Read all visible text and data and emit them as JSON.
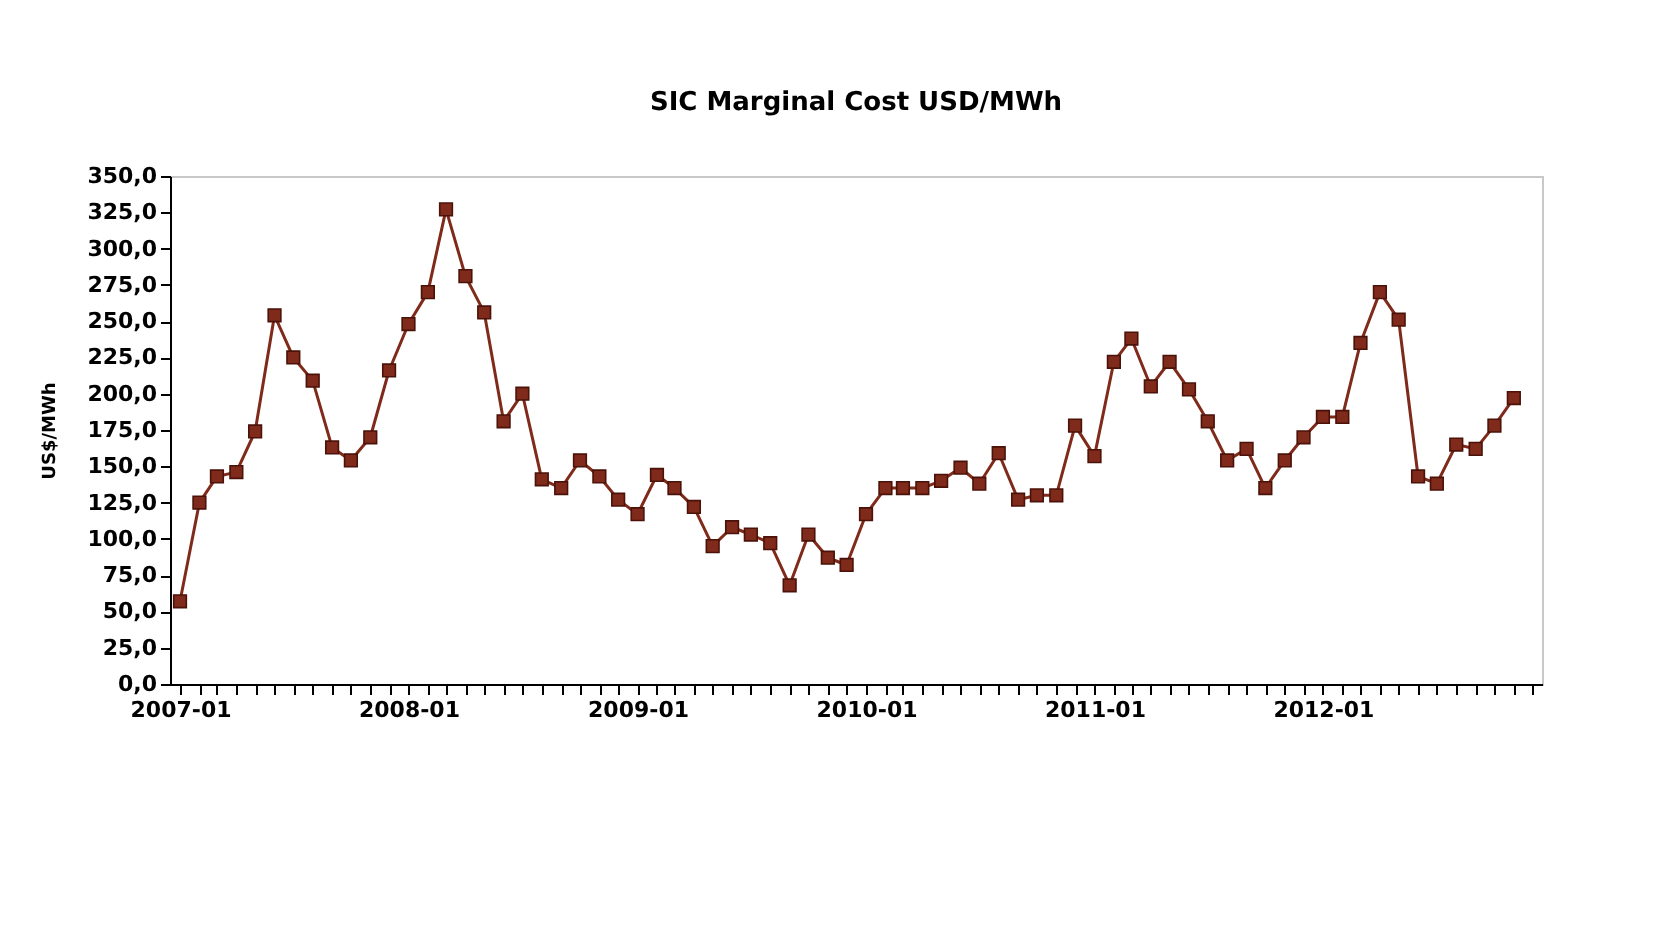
{
  "chart_data": {
    "type": "line",
    "title": "SIC Marginal Cost USD/MWh",
    "ylabel": "US$/MWh",
    "x": [
      "2007-01",
      "2007-02",
      "2007-03",
      "2007-04",
      "2007-05",
      "2007-06",
      "2007-07",
      "2007-08",
      "2007-09",
      "2007-10",
      "2007-11",
      "2007-12",
      "2008-01",
      "2008-02",
      "2008-03",
      "2008-04",
      "2008-05",
      "2008-06",
      "2008-07",
      "2008-08",
      "2008-09",
      "2008-10",
      "2008-11",
      "2008-12",
      "2009-01",
      "2009-02",
      "2009-03",
      "2009-04",
      "2009-05",
      "2009-06",
      "2009-07",
      "2009-08",
      "2009-09",
      "2009-10",
      "2009-11",
      "2009-12",
      "2010-01",
      "2010-02",
      "2010-03",
      "2010-04",
      "2010-05",
      "2010-06",
      "2010-07",
      "2010-08",
      "2010-09",
      "2010-10",
      "2010-11",
      "2010-12",
      "2011-01",
      "2011-02",
      "2011-03",
      "2011-04",
      "2011-05",
      "2011-06",
      "2011-07",
      "2011-08",
      "2011-09",
      "2011-10",
      "2011-11",
      "2011-12",
      "2012-01",
      "2012-02",
      "2012-03",
      "2012-04",
      "2012-05",
      "2012-06",
      "2012-07",
      "2012-08",
      "2012-09",
      "2012-10",
      "2012-11"
    ],
    "series": [
      {
        "color": "#7f2a1a",
        "values": [
          57,
          125,
          143,
          146,
          174,
          254,
          225,
          209,
          163,
          154,
          170,
          216,
          248,
          270,
          327,
          281,
          256,
          181,
          200,
          141,
          135,
          154,
          143,
          127,
          117,
          144,
          135,
          122,
          95,
          108,
          103,
          97,
          68,
          103,
          87,
          82,
          117,
          135,
          135,
          135,
          140,
          149,
          138,
          159,
          127,
          130,
          130,
          178,
          157,
          222,
          238,
          205,
          222,
          203,
          181,
          154,
          162,
          135,
          154,
          170,
          184,
          184,
          235,
          270,
          251,
          143,
          138,
          165,
          162,
          178,
          197
        ]
      }
    ],
    "xlim": [
      "2006-12-16",
      "2012-12-16"
    ],
    "xticks": [
      {
        "value": "2007-01",
        "label": "2007-01"
      },
      {
        "value": "2007-02",
        "label": null
      },
      {
        "value": "2007-03",
        "label": null
      },
      {
        "value": "2007-04",
        "label": null
      },
      {
        "value": "2007-05",
        "label": null
      },
      {
        "value": "2007-06",
        "label": null
      },
      {
        "value": "2007-07",
        "label": null
      },
      {
        "value": "2007-08",
        "label": null
      },
      {
        "value": "2007-09",
        "label": null
      },
      {
        "value": "2007-10",
        "label": null
      },
      {
        "value": "2007-11",
        "label": null
      },
      {
        "value": "2007-12",
        "label": null
      },
      {
        "value": "2008-01",
        "label": "2008-01"
      },
      {
        "value": "2008-02",
        "label": null
      },
      {
        "value": "2008-03",
        "label": null
      },
      {
        "value": "2008-04",
        "label": null
      },
      {
        "value": "2008-05",
        "label": null
      },
      {
        "value": "2008-06",
        "label": null
      },
      {
        "value": "2008-07",
        "label": null
      },
      {
        "value": "2008-08",
        "label": null
      },
      {
        "value": "2008-09",
        "label": null
      },
      {
        "value": "2008-10",
        "label": null
      },
      {
        "value": "2008-11",
        "label": null
      },
      {
        "value": "2008-12",
        "label": null
      },
      {
        "value": "2009-01",
        "label": "2009-01"
      },
      {
        "value": "2009-02",
        "label": null
      },
      {
        "value": "2009-03",
        "label": null
      },
      {
        "value": "2009-04",
        "label": null
      },
      {
        "value": "2009-05",
        "label": null
      },
      {
        "value": "2009-06",
        "label": null
      },
      {
        "value": "2009-07",
        "label": null
      },
      {
        "value": "2009-08",
        "label": null
      },
      {
        "value": "2009-09",
        "label": null
      },
      {
        "value": "2009-10",
        "label": null
      },
      {
        "value": "2009-11",
        "label": null
      },
      {
        "value": "2009-12",
        "label": null
      },
      {
        "value": "2010-01",
        "label": "2010-01"
      },
      {
        "value": "2010-02",
        "label": null
      },
      {
        "value": "2010-03",
        "label": null
      },
      {
        "value": "2010-04",
        "label": null
      },
      {
        "value": "2010-05",
        "label": null
      },
      {
        "value": "2010-06",
        "label": null
      },
      {
        "value": "2010-07",
        "label": null
      },
      {
        "value": "2010-08",
        "label": null
      },
      {
        "value": "2010-09",
        "label": null
      },
      {
        "value": "2010-10",
        "label": null
      },
      {
        "value": "2010-11",
        "label": null
      },
      {
        "value": "2010-12",
        "label": null
      },
      {
        "value": "2011-01",
        "label": "2011-01"
      },
      {
        "value": "2011-02",
        "label": null
      },
      {
        "value": "2011-03",
        "label": null
      },
      {
        "value": "2011-04",
        "label": null
      },
      {
        "value": "2011-05",
        "label": null
      },
      {
        "value": "2011-06",
        "label": null
      },
      {
        "value": "2011-07",
        "label": null
      },
      {
        "value": "2011-08",
        "label": null
      },
      {
        "value": "2011-09",
        "label": null
      },
      {
        "value": "2011-10",
        "label": null
      },
      {
        "value": "2011-11",
        "label": null
      },
      {
        "value": "2011-12",
        "label": null
      },
      {
        "value": "2012-01",
        "label": "2012-01"
      },
      {
        "value": "2012-02",
        "label": null
      },
      {
        "value": "2012-03",
        "label": null
      },
      {
        "value": "2012-04",
        "label": null
      },
      {
        "value": "2012-05",
        "label": null
      },
      {
        "value": "2012-06",
        "label": null
      },
      {
        "value": "2012-07",
        "label": null
      },
      {
        "value": "2012-08",
        "label": null
      },
      {
        "value": "2012-09",
        "label": null
      },
      {
        "value": "2012-10",
        "label": null
      },
      {
        "value": "2012-11",
        "label": null
      },
      {
        "value": "2012-12",
        "label": null
      }
    ],
    "ylim": [
      0,
      350
    ],
    "yticks": [
      {
        "value": 0,
        "label": "0,0"
      },
      {
        "value": 25,
        "label": "25,0"
      },
      {
        "value": 50,
        "label": "50,0"
      },
      {
        "value": 75,
        "label": "75,0"
      },
      {
        "value": 100,
        "label": "100,0"
      },
      {
        "value": 125,
        "label": "125,0"
      },
      {
        "value": 150,
        "label": "150,0"
      },
      {
        "value": 175,
        "label": "175,0"
      },
      {
        "value": 200,
        "label": "200,0"
      },
      {
        "value": 225,
        "label": "225,0"
      },
      {
        "value": 250,
        "label": "250,0"
      },
      {
        "value": 275,
        "label": "275,0"
      },
      {
        "value": 300,
        "label": "300,0"
      },
      {
        "value": 325,
        "label": "325,0"
      },
      {
        "value": 350,
        "label": "350,0"
      }
    ],
    "grid": false,
    "legend": false,
    "marker": "square",
    "line_style": "solid"
  }
}
